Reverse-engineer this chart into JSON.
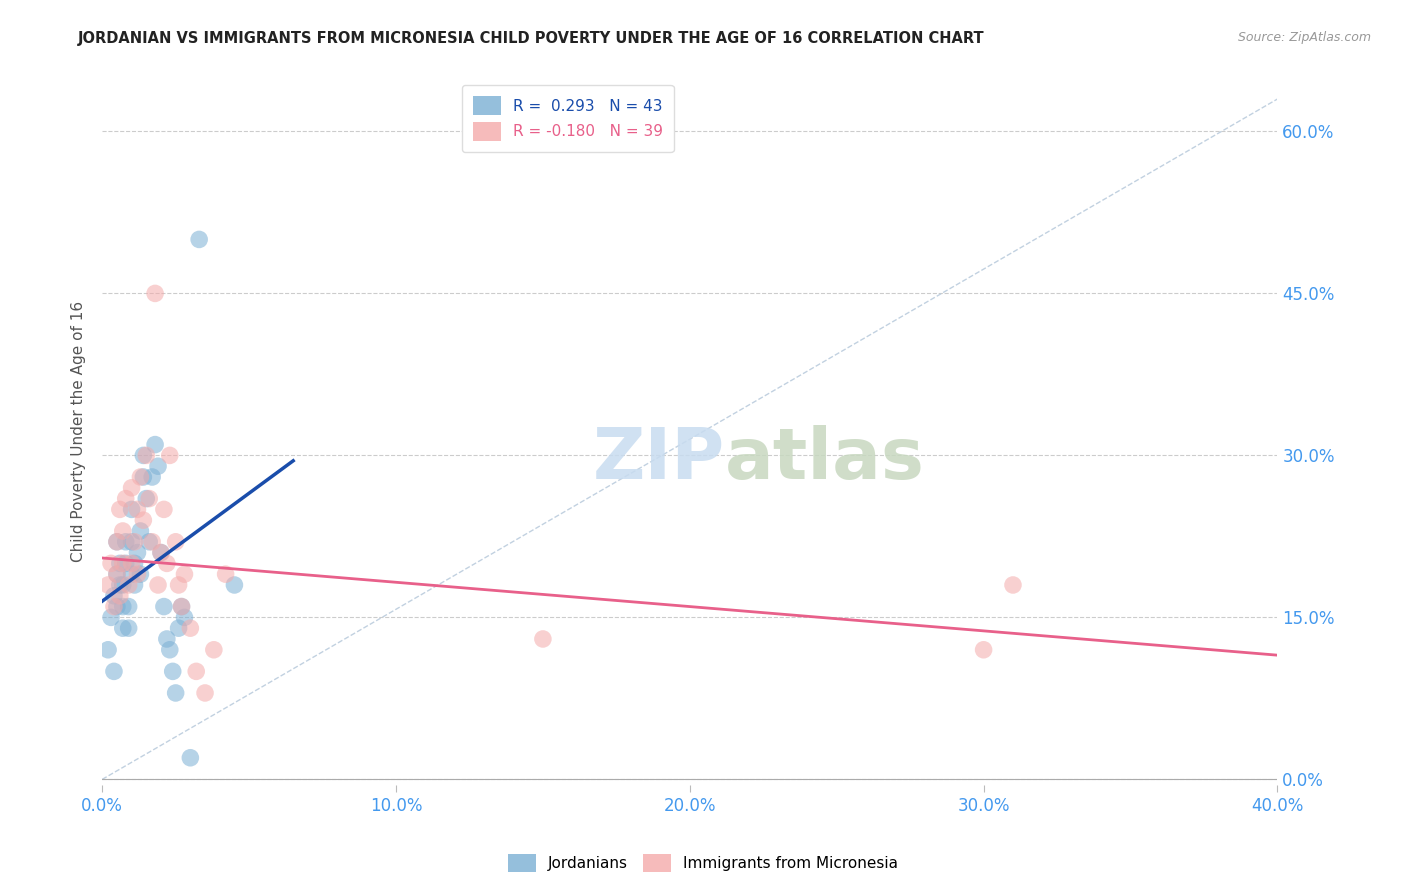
{
  "title": "JORDANIAN VS IMMIGRANTS FROM MICRONESIA CHILD POVERTY UNDER THE AGE OF 16 CORRELATION CHART",
  "source": "Source: ZipAtlas.com",
  "xlabel_ticks": [
    "0.0%",
    "10.0%",
    "20.0%",
    "30.0%",
    "40.0%"
  ],
  "xlabel_tick_vals": [
    0.0,
    0.1,
    0.2,
    0.3,
    0.4
  ],
  "ylabel_ticks": [
    "0.0%",
    "15.0%",
    "30.0%",
    "45.0%",
    "60.0%"
  ],
  "ylabel_tick_vals": [
    0.0,
    0.15,
    0.3,
    0.45,
    0.6
  ],
  "ylabel": "Child Poverty Under the Age of 16",
  "xlim": [
    0.0,
    0.4
  ],
  "ylim": [
    -0.005,
    0.65
  ],
  "legend_r_blue": "R =  0.293",
  "legend_n_blue": "N = 43",
  "legend_r_pink": "R = -0.180",
  "legend_n_pink": "N = 39",
  "blue_color": "#7BAFD4",
  "pink_color": "#F4AAAA",
  "blue_line_color": "#1A4DAB",
  "pink_line_color": "#E8608A",
  "dashed_line_color": "#BBCCDD",
  "watermark_zip": "ZIP",
  "watermark_atlas": "atlas",
  "blue_scatter_x": [
    0.002,
    0.003,
    0.004,
    0.004,
    0.005,
    0.005,
    0.005,
    0.006,
    0.006,
    0.007,
    0.007,
    0.007,
    0.008,
    0.008,
    0.009,
    0.009,
    0.01,
    0.01,
    0.01,
    0.011,
    0.011,
    0.012,
    0.013,
    0.013,
    0.014,
    0.014,
    0.015,
    0.016,
    0.017,
    0.018,
    0.019,
    0.02,
    0.021,
    0.022,
    0.023,
    0.024,
    0.025,
    0.026,
    0.027,
    0.028,
    0.03,
    0.033,
    0.045
  ],
  "blue_scatter_y": [
    0.12,
    0.15,
    0.1,
    0.17,
    0.19,
    0.22,
    0.16,
    0.18,
    0.2,
    0.14,
    0.16,
    0.18,
    0.2,
    0.22,
    0.16,
    0.14,
    0.19,
    0.22,
    0.25,
    0.18,
    0.2,
    0.21,
    0.19,
    0.23,
    0.28,
    0.3,
    0.26,
    0.22,
    0.28,
    0.31,
    0.29,
    0.21,
    0.16,
    0.13,
    0.12,
    0.1,
    0.08,
    0.14,
    0.16,
    0.15,
    0.02,
    0.5,
    0.18
  ],
  "pink_scatter_x": [
    0.002,
    0.003,
    0.004,
    0.005,
    0.005,
    0.006,
    0.006,
    0.007,
    0.007,
    0.008,
    0.009,
    0.01,
    0.01,
    0.011,
    0.012,
    0.012,
    0.013,
    0.014,
    0.015,
    0.016,
    0.017,
    0.018,
    0.019,
    0.02,
    0.021,
    0.022,
    0.023,
    0.025,
    0.026,
    0.027,
    0.028,
    0.03,
    0.032,
    0.035,
    0.038,
    0.042,
    0.15,
    0.3,
    0.31
  ],
  "pink_scatter_y": [
    0.18,
    0.2,
    0.16,
    0.19,
    0.22,
    0.17,
    0.25,
    0.2,
    0.23,
    0.26,
    0.18,
    0.2,
    0.27,
    0.22,
    0.19,
    0.25,
    0.28,
    0.24,
    0.3,
    0.26,
    0.22,
    0.45,
    0.18,
    0.21,
    0.25,
    0.2,
    0.3,
    0.22,
    0.18,
    0.16,
    0.19,
    0.14,
    0.1,
    0.08,
    0.12,
    0.19,
    0.13,
    0.12,
    0.18
  ],
  "blue_line_x": [
    0.0,
    0.065
  ],
  "blue_line_y": [
    0.165,
    0.295
  ],
  "pink_line_x": [
    0.0,
    0.4
  ],
  "pink_line_y": [
    0.205,
    0.115
  ],
  "dashed_line_x": [
    0.0,
    0.4
  ],
  "dashed_line_y": [
    0.0,
    0.63
  ]
}
